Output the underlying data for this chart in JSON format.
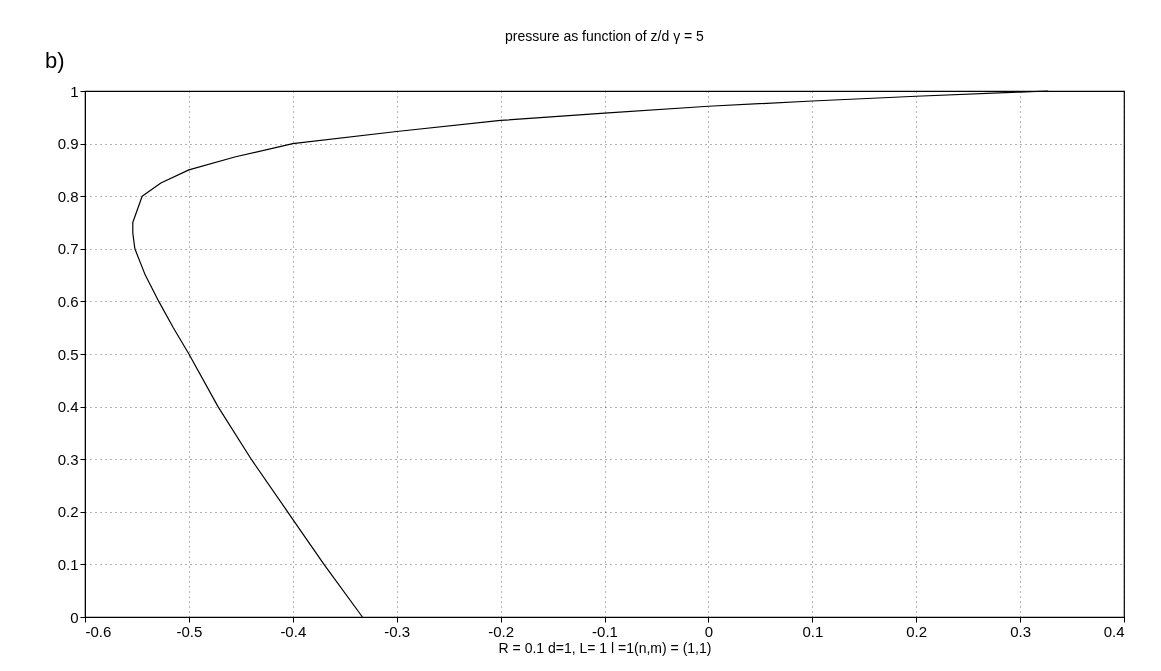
{
  "chart_data": {
    "type": "line",
    "title": "pressure as function of z/d  γ = 5",
    "xlabel": "R  = 0.1 d=1,  L= 1  l =1(n,m) = (1,1)",
    "annotations": [
      "b)"
    ],
    "series": [
      {
        "color": "#000000",
        "x": [
          -0.333,
          -0.37,
          -0.405,
          -0.44,
          -0.472,
          -0.5,
          -0.515,
          -0.529,
          -0.542,
          -0.552,
          -0.554,
          -0.554,
          -0.545,
          -0.527,
          -0.5,
          -0.455,
          -0.4,
          -0.3,
          -0.2,
          -0.1,
          0.0,
          0.1,
          0.2,
          0.3,
          0.327
        ],
        "values": [
          0,
          0.1,
          0.2,
          0.3,
          0.4,
          0.5,
          0.55,
          0.6,
          0.65,
          0.7,
          0.73,
          0.75,
          0.8,
          0.825,
          0.85,
          0.875,
          0.9,
          0.923,
          0.944,
          0.958,
          0.971,
          0.981,
          0.99,
          0.998,
          1.0
        ]
      }
    ],
    "xlim": [
      -0.6,
      0.4
    ],
    "ylim": [
      0,
      1
    ],
    "xticks": [
      -0.6,
      -0.5,
      -0.4,
      -0.3,
      -0.2,
      -0.1,
      0,
      0.1,
      0.2,
      0.3,
      0.4
    ],
    "yticks": [
      0,
      0.1,
      0.2,
      0.3,
      0.4,
      0.5,
      0.6,
      0.7,
      0.8,
      0.9,
      1
    ],
    "grid": true,
    "legend": false,
    "line_style": "solid"
  }
}
